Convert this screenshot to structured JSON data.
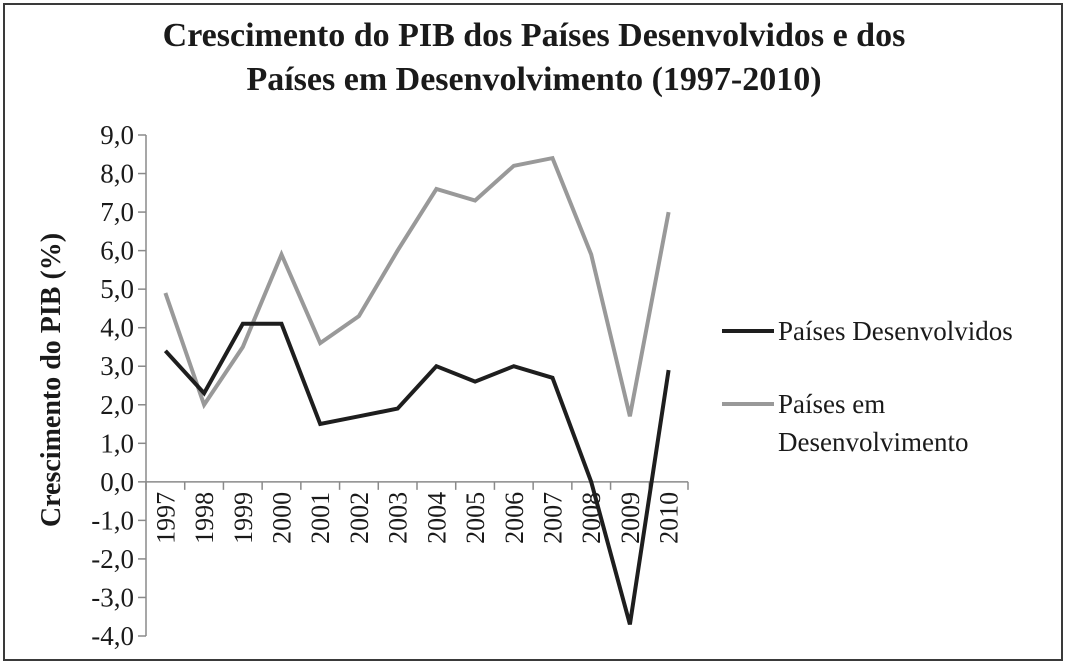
{
  "chart_data": {
    "type": "line",
    "title_lines": [
      "Crescimento  do PIB dos Países Desenvolvidos  e dos",
      "Países em Desenvolvimento  (1997-2010)"
    ],
    "xlabel": "",
    "ylabel": "Crescimento do PIB (%)",
    "categories": [
      "1997",
      "1998",
      "1999",
      "2000",
      "2001",
      "2002",
      "2003",
      "2004",
      "2005",
      "2006",
      "2007",
      "2008",
      "2009",
      "2010"
    ],
    "ylim": [
      -4,
      9
    ],
    "yticks": [
      "9,0",
      "8,0",
      "7,0",
      "6,0",
      "5,0",
      "4,0",
      "3,0",
      "2,0",
      "1,0",
      "0,0",
      "-1,0",
      "-2,0",
      "-3,0",
      "-4,0"
    ],
    "grid": false,
    "legend_position": "right",
    "series": [
      {
        "name": "Países Desenvolvidos",
        "color": "#1e1e1e",
        "values": [
          3.4,
          2.3,
          4.1,
          4.1,
          1.5,
          1.7,
          1.9,
          3.0,
          2.6,
          3.0,
          2.7,
          0.0,
          -3.7,
          2.9
        ]
      },
      {
        "name": "Países em Desenvolvimento",
        "color": "#999999",
        "values": [
          4.9,
          2.0,
          3.5,
          5.9,
          3.6,
          4.3,
          6.0,
          7.6,
          7.3,
          8.2,
          8.4,
          5.9,
          1.7,
          7.0
        ]
      }
    ]
  }
}
